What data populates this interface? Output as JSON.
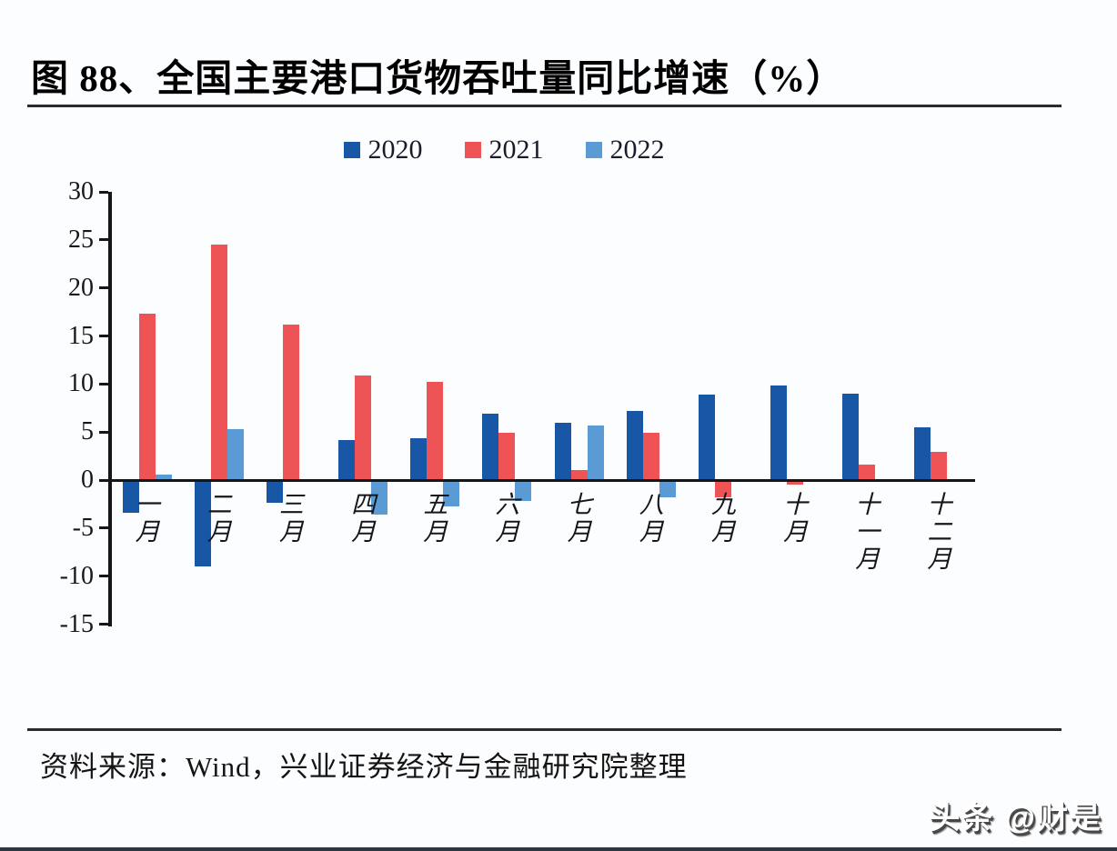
{
  "title": "图 88、全国主要港口货物吞吐量同比增速（%）",
  "source_note": "资料来源：Wind，兴业证券经济与金融研究院整理",
  "watermark": "头条 @财是",
  "colors": {
    "series_2020": "#1757a6",
    "series_2021": "#ee5456",
    "series_2022": "#5b9bd5",
    "axis": "#161616"
  },
  "chart_data": {
    "type": "bar",
    "title": "全国主要港口货物吞吐量同比增速（%）",
    "xlabel": "",
    "ylabel": "",
    "ylim": [
      -15,
      30
    ],
    "yticks": [
      30,
      25,
      20,
      15,
      10,
      5,
      0,
      -5,
      -10,
      -15
    ],
    "grid": false,
    "legend_position": "top",
    "categories": [
      "一月",
      "二月",
      "三月",
      "四月",
      "五月",
      "六月",
      "七月",
      "八月",
      "九月",
      "十月",
      "十一月",
      "十二月"
    ],
    "series": [
      {
        "name": "2020",
        "color": "#1757a6",
        "values": [
          -3.4,
          -9.0,
          -2.4,
          4.2,
          4.4,
          6.9,
          6.0,
          7.2,
          8.9,
          9.8,
          9.0,
          5.5
        ]
      },
      {
        "name": "2021",
        "color": "#ee5456",
        "values": [
          17.3,
          24.5,
          16.2,
          10.9,
          10.2,
          4.9,
          1.0,
          4.9,
          -1.8,
          -0.5,
          1.6,
          2.9
        ]
      },
      {
        "name": "2022",
        "color": "#5b9bd5",
        "values": [
          0.6,
          5.3,
          null,
          -3.6,
          -2.7,
          -2.2,
          5.7,
          -1.8,
          null,
          null,
          null,
          null
        ]
      }
    ]
  }
}
